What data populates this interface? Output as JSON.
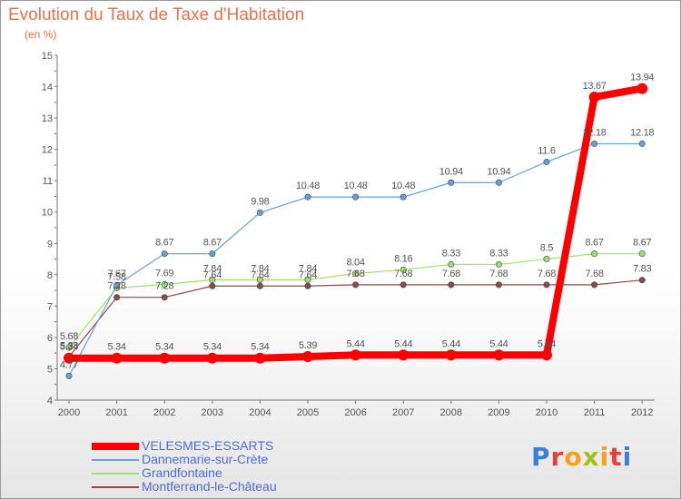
{
  "title": "Evolution du Taux de Taxe d'Habitation",
  "subtitle": "(en %)",
  "logo": {
    "text": "Proxiti",
    "colors": [
      "#3b7fd9",
      "#e8413b",
      "#f5a21b",
      "#9fc31a",
      "#f5a21b",
      "#e8413b",
      "#3b7fd9"
    ]
  },
  "chart_data": {
    "type": "line",
    "x": [
      "2000",
      "2001",
      "2002",
      "2003",
      "2004",
      "2005",
      "2006",
      "2007",
      "2008",
      "2009",
      "2010",
      "2011",
      "2012"
    ],
    "ylim": [
      4,
      15
    ],
    "yticks": [
      "4",
      "5",
      "6",
      "7",
      "8",
      "9",
      "10",
      "11",
      "12",
      "13",
      "14",
      "15"
    ],
    "grid": false,
    "legend_position": "bottom-left",
    "series": [
      {
        "name": "VELESMES-ESSARTS",
        "color": "#ff0000",
        "values": [
          5.34,
          5.34,
          5.34,
          5.34,
          5.34,
          5.39,
          5.44,
          5.44,
          5.44,
          5.44,
          5.44,
          13.67,
          13.94
        ],
        "labels": [
          "5.34",
          "5.34",
          "5.34",
          "5.34",
          "5.34",
          "5.39",
          "5.44",
          "5.44",
          "5.44",
          "5.44",
          "5.44",
          "13.67",
          "13.94"
        ]
      },
      {
        "name": "Dannemarie-sur-Crète",
        "color": "#6a9fd0",
        "values": [
          4.77,
          7.67,
          8.67,
          8.67,
          9.98,
          10.48,
          10.48,
          10.48,
          10.94,
          10.94,
          11.6,
          12.18,
          12.18
        ],
        "labels": [
          "4.77",
          "7.67",
          "8.67",
          "8.67",
          "9.98",
          "10.48",
          "10.48",
          "10.48",
          "10.94",
          "10.94",
          "11.6",
          "12.18",
          "12.18"
        ]
      },
      {
        "name": "Grandfontaine",
        "color": "#9fe06a",
        "values": [
          5.68,
          7.58,
          7.69,
          7.84,
          7.84,
          7.84,
          8.04,
          8.16,
          8.33,
          8.33,
          8.5,
          8.67,
          8.67
        ],
        "labels": [
          "5.68",
          "7.58",
          "7.69",
          "7.84",
          "7.84",
          "7.84",
          "8.04",
          "8.16",
          "8.33",
          "8.33",
          "8.5",
          "8.67",
          "8.67"
        ]
      },
      {
        "name": "Montferrand-le-Château",
        "color": "#8c4a4a",
        "values": [
          5.38,
          7.28,
          7.28,
          7.64,
          7.64,
          7.64,
          7.68,
          7.68,
          7.68,
          7.68,
          7.68,
          7.68,
          7.83
        ],
        "labels": [
          "5.38",
          "7.28",
          "7.28",
          "7.64",
          "7.64",
          "7.64",
          "7.68",
          "7.68",
          "7.68",
          "7.68",
          "7.68",
          "7.68",
          "7.83"
        ]
      }
    ]
  }
}
